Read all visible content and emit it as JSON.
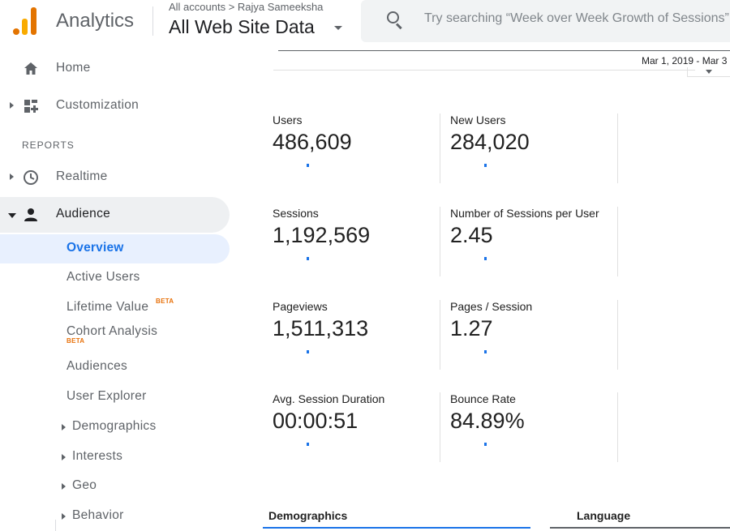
{
  "header": {
    "app_name": "Analytics",
    "account_path": "All accounts > Rajya Sameeksha",
    "property_name": "All Web Site Data",
    "search_placeholder": "Try searching “Week over Week Growth of Sessions”"
  },
  "sidebar": {
    "home_label": "Home",
    "customization_label": "Customization",
    "section_reports": "REPORTS",
    "realtime_label": "Realtime",
    "audience_label": "Audience",
    "audience_children": {
      "overview": "Overview",
      "active_users": "Active Users",
      "lifetime_value": "Lifetime Value",
      "cohort_analysis": "Cohort Analysis",
      "audiences": "Audiences",
      "user_explorer": "User Explorer",
      "demographics": "Demographics",
      "interests": "Interests",
      "geo": "Geo",
      "behavior": "Behavior"
    },
    "beta_badge": "BETA"
  },
  "main": {
    "date_range": "Mar 1, 2019 - Mar 3",
    "metrics": [
      {
        "label": "Users",
        "value": "486,609"
      },
      {
        "label": "New Users",
        "value": "284,020"
      },
      {
        "label": "Sessions",
        "value": "1,192,569"
      },
      {
        "label": "Number of Sessions per User",
        "value": "2.45"
      },
      {
        "label": "Pageviews",
        "value": "1,511,313"
      },
      {
        "label": "Pages / Session",
        "value": "1.27"
      },
      {
        "label": "Avg. Session Duration",
        "value": "00:00:51"
      },
      {
        "label": "Bounce Rate",
        "value": "84.89%"
      }
    ],
    "tabs": {
      "demographics": "Demographics",
      "language": "Language"
    }
  },
  "colors": {
    "accent_blue": "#1a73e8",
    "logo_orange": "#e37400",
    "logo_yellow": "#f9ab00",
    "beta_orange": "#e8710a"
  }
}
